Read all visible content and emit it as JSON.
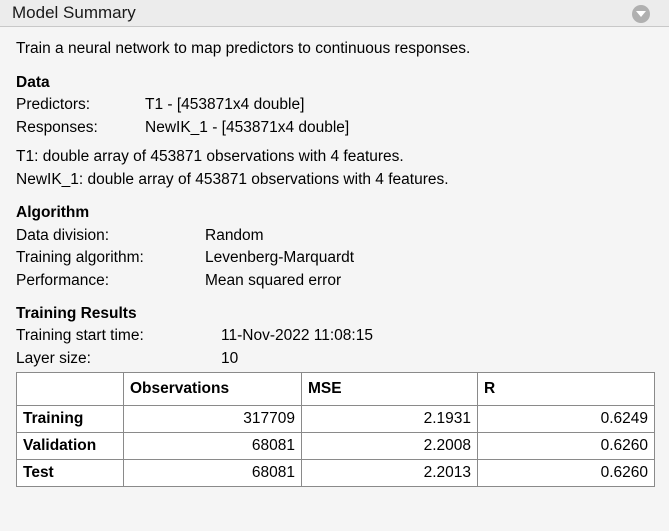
{
  "header": {
    "title": "Model Summary"
  },
  "description": "Train a neural network to map predictors to continuous responses.",
  "data_section": {
    "heading": "Data",
    "predictors_label": "Predictors:",
    "predictors_value": "T1 - [453871x4 double]",
    "responses_label": "Responses:",
    "responses_value": "NewIK_1 - [453871x4 double]",
    "note1": "T1: double array of 453871 observations with 4 features.",
    "note2": "NewIK_1: double array of 453871 observations with 4 features."
  },
  "algorithm": {
    "heading": "Algorithm",
    "rows": [
      {
        "label": "Data division:",
        "value": "Random"
      },
      {
        "label": "Training algorithm:",
        "value": "Levenberg-Marquardt"
      },
      {
        "label": "Performance:",
        "value": "Mean squared error"
      }
    ]
  },
  "training_results": {
    "heading": "Training Results",
    "start_time_label": "Training start time:",
    "start_time_value": "11-Nov-2022 11:08:15",
    "layer_size_label": "Layer size:",
    "layer_size_value": "10",
    "columns": [
      "",
      "Observations",
      "MSE",
      "R"
    ],
    "rows": [
      {
        "name": "Training",
        "observations": "317709",
        "mse": "2.1931",
        "r": "0.6249"
      },
      {
        "name": "Validation",
        "observations": "68081",
        "mse": "2.2008",
        "r": "0.6260"
      },
      {
        "name": "Test",
        "observations": "68081",
        "mse": "2.2013",
        "r": "0.6260"
      }
    ]
  }
}
